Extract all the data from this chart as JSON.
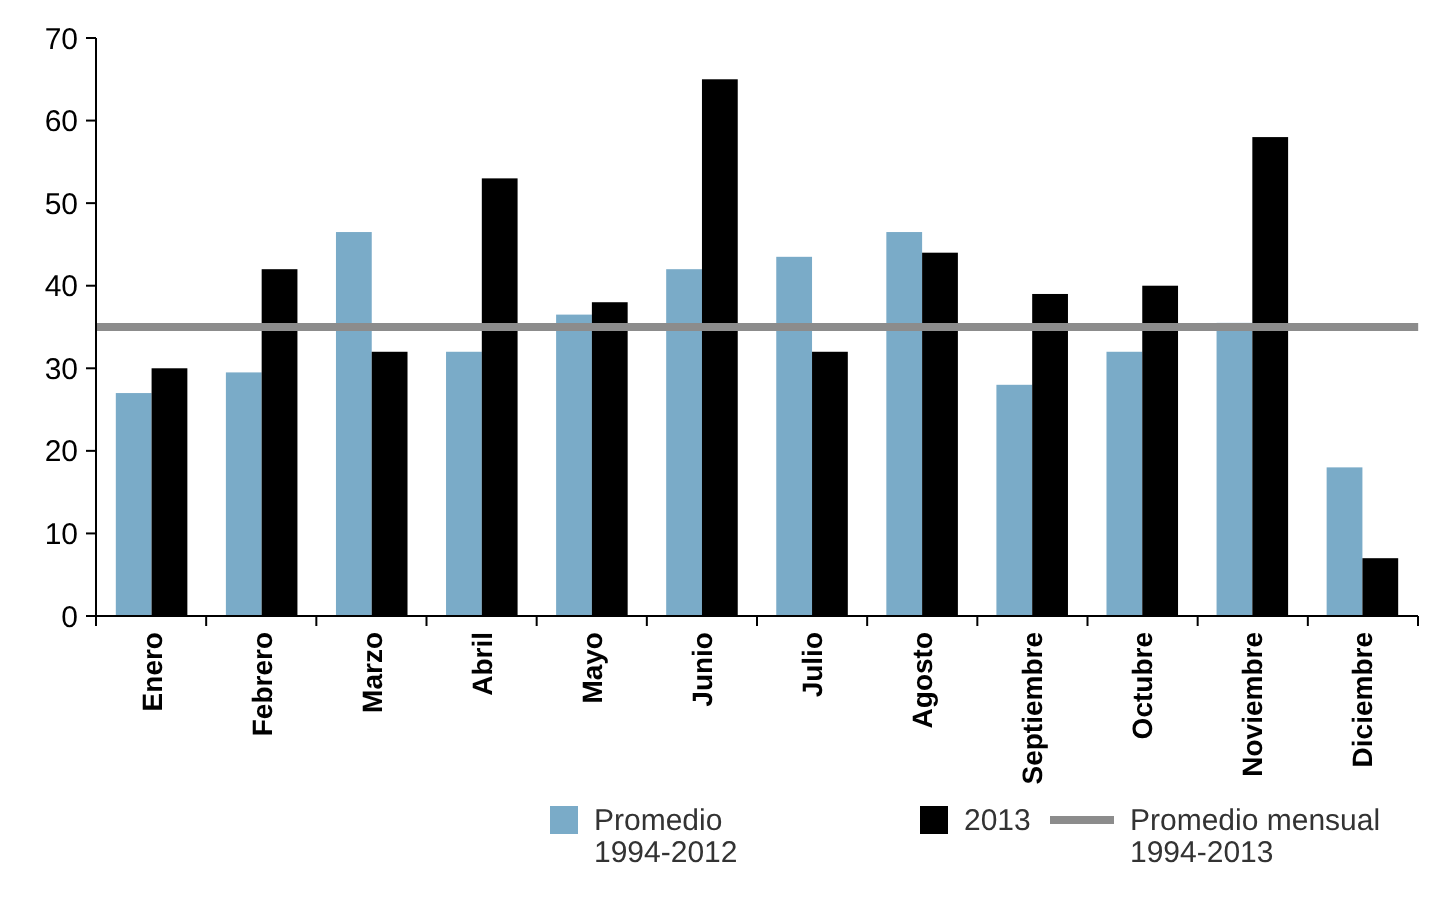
{
  "chart_data": {
    "type": "bar",
    "categories": [
      "Enero",
      "Febrero",
      "Marzo",
      "Abril",
      "Mayo",
      "Junio",
      "Julio",
      "Agosto",
      "Septiembre",
      "Octubre",
      "Noviembre",
      "Diciembre"
    ],
    "series": [
      {
        "name": "Promedio\n1994-2012",
        "color": "#7aabc8",
        "values": [
          27,
          29.5,
          46.5,
          32,
          36.5,
          42,
          43.5,
          46.5,
          28,
          32,
          35.5,
          18
        ]
      },
      {
        "name": "2013",
        "color": "#000000",
        "values": [
          30,
          42,
          32,
          53,
          38,
          65,
          32,
          44,
          39,
          40,
          58,
          7
        ]
      }
    ],
    "ylim": [
      0,
      70
    ],
    "yticks": [
      0,
      10,
      20,
      30,
      40,
      50,
      60,
      70
    ],
    "grid": false,
    "legend": "bottom",
    "ref_lines": [
      {
        "axis": "y",
        "value": 35,
        "label": "Promedio mensual\n1994-2013",
        "color": "#8c8c8c"
      }
    ]
  }
}
